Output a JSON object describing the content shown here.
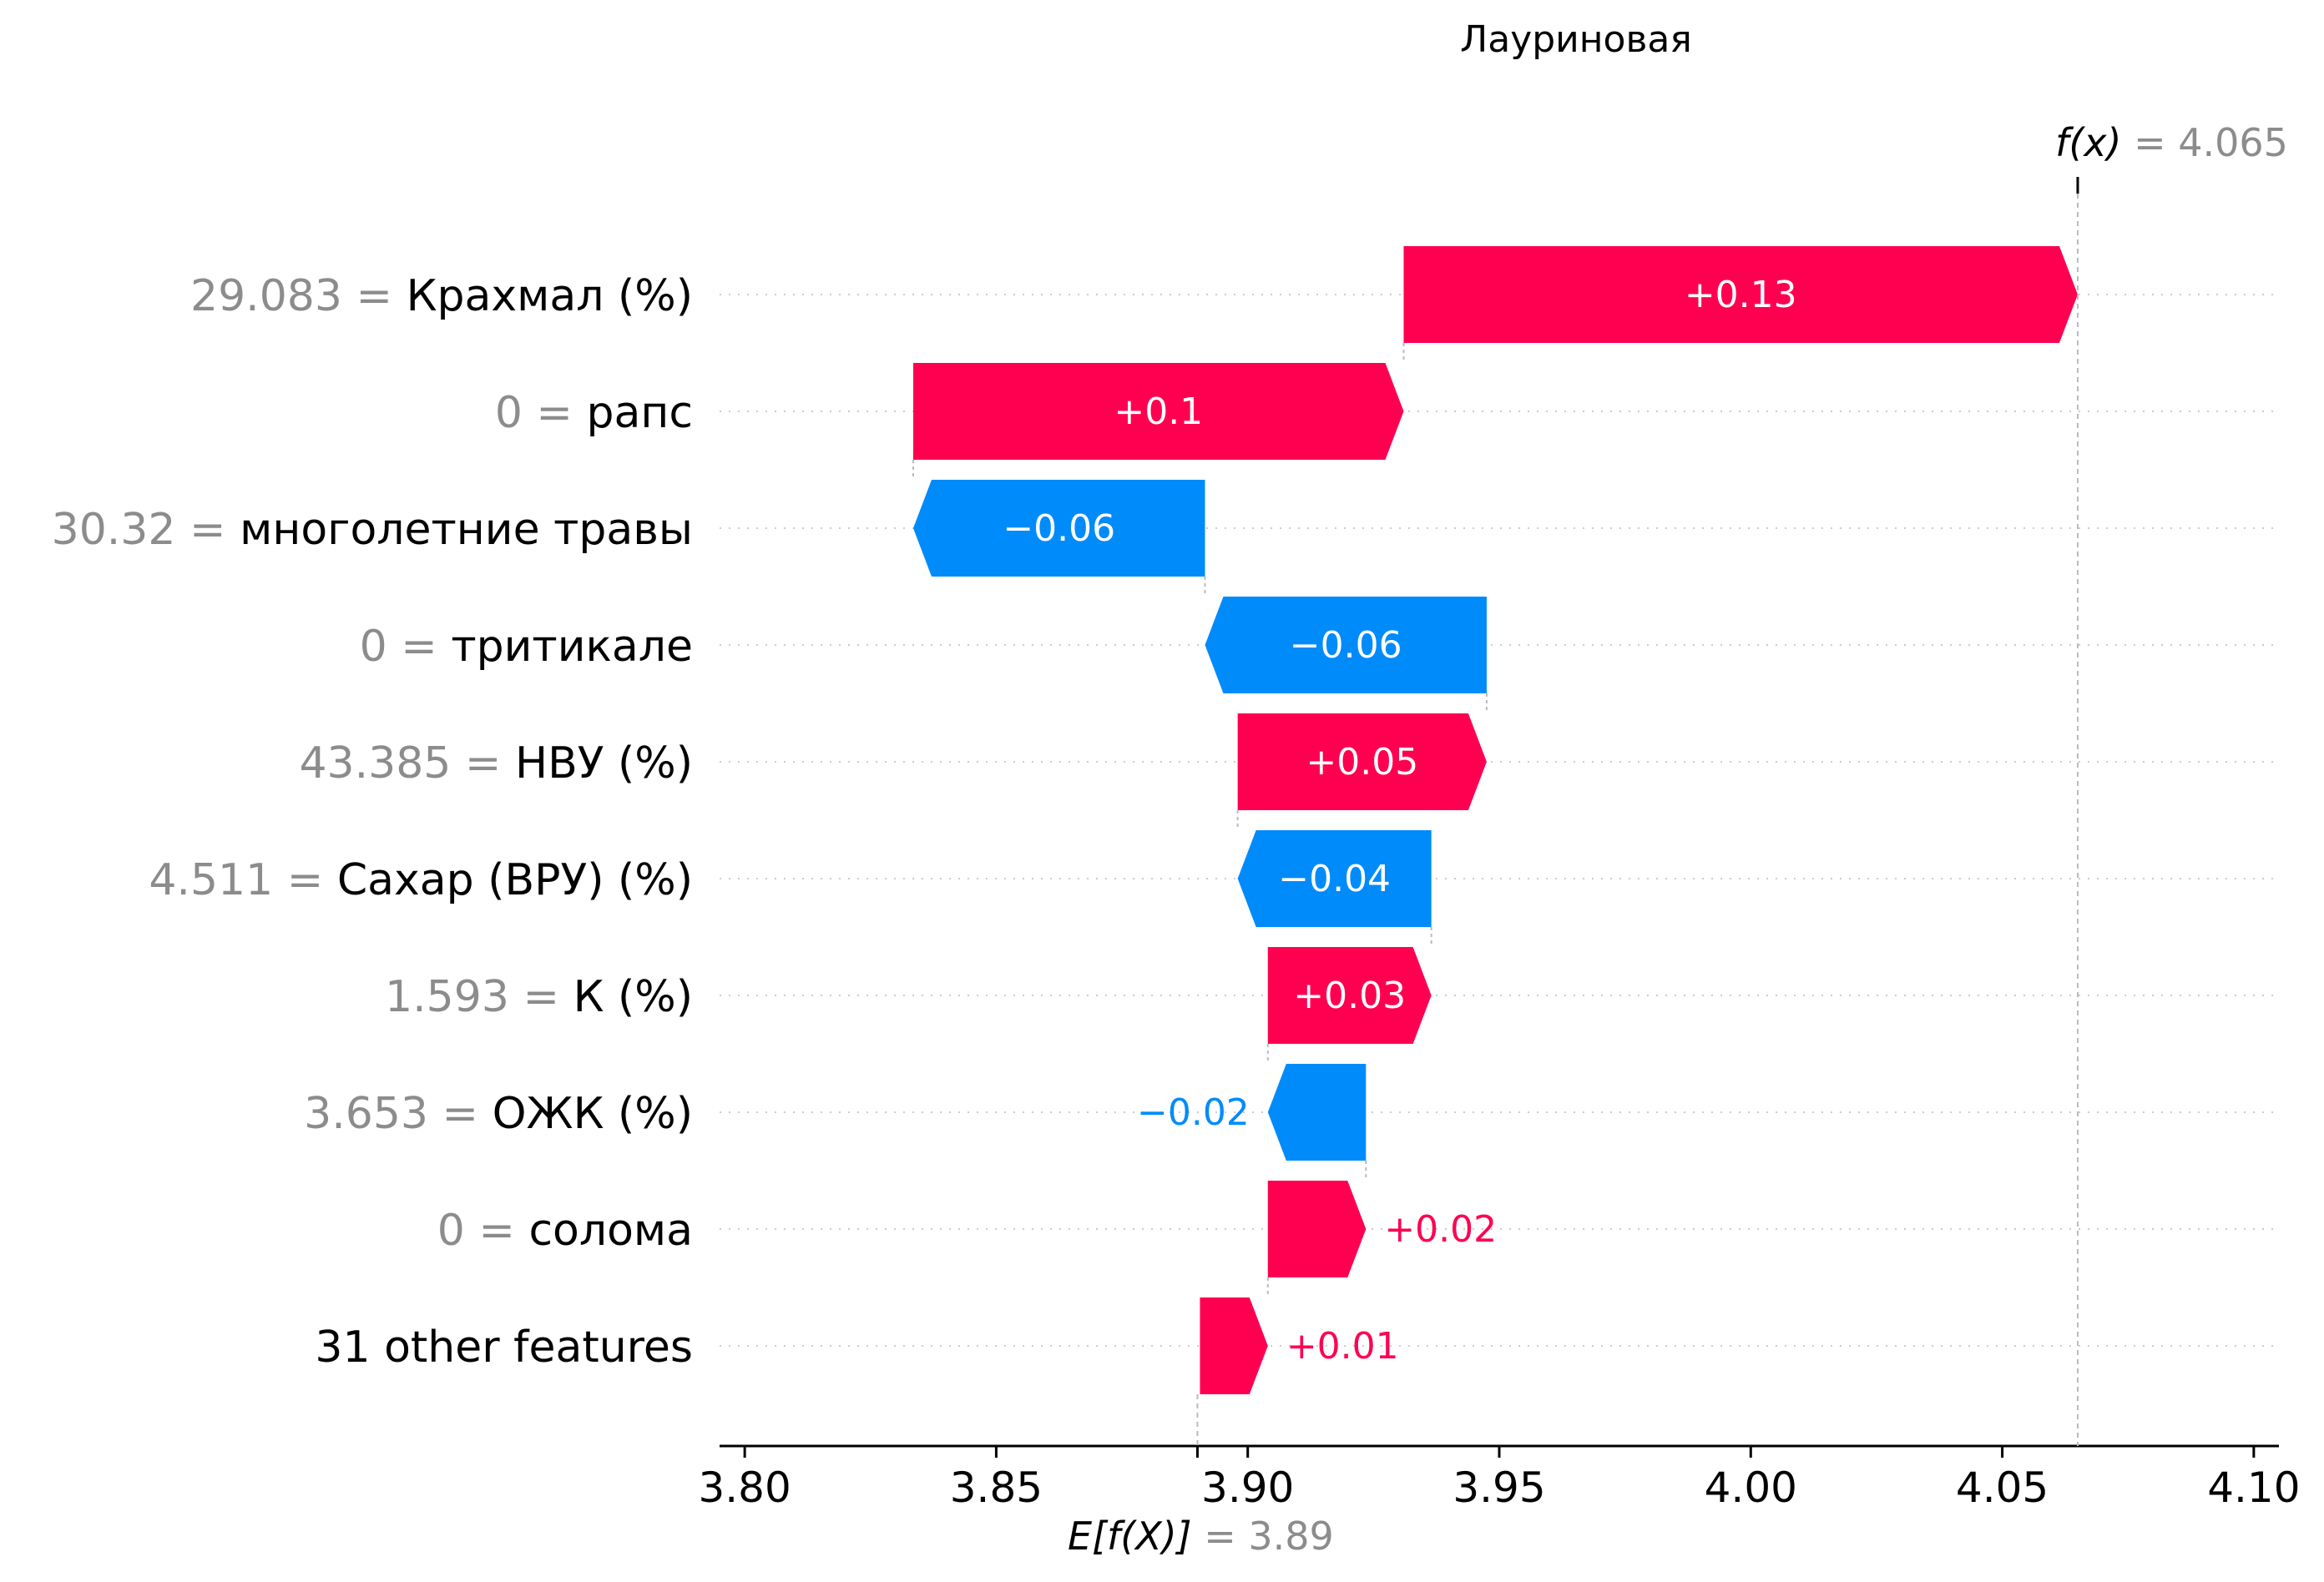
{
  "chart_data": {
    "type": "waterfall",
    "title": "Лауриновая",
    "base_value": 3.89,
    "base_value_text": "3.89",
    "final_value": 4.065,
    "final_value_text": "4.065",
    "fx_label": "f(x)",
    "ex_label": "E[f(X)]",
    "xlim": [
      3.795,
      4.105
    ],
    "xticks": [
      3.8,
      3.85,
      3.9,
      3.95,
      4.0,
      4.05,
      4.1
    ],
    "xtick_labels": [
      "3.80",
      "3.85",
      "3.90",
      "3.95",
      "4.00",
      "4.05",
      "4.10"
    ],
    "positive_color": "#ff0051",
    "negative_color": "#008bfb",
    "features": [
      {
        "value_text": "29.083",
        "name": "Крахмал (%)",
        "contribution": 0.134,
        "label": "+0.13"
      },
      {
        "value_text": "0",
        "name": "рапс",
        "contribution": 0.0975,
        "label": "+0.1"
      },
      {
        "value_text": "30.32",
        "name": "многолетние травы",
        "contribution": -0.058,
        "label": "−0.06"
      },
      {
        "value_text": "0",
        "name": "тритикале",
        "contribution": -0.056,
        "label": "−0.06"
      },
      {
        "value_text": "43.385",
        "name": "НВУ (%)",
        "contribution": 0.0495,
        "label": "+0.05"
      },
      {
        "value_text": "4.511",
        "name": "Сахар (ВРУ) (%)",
        "contribution": -0.0385,
        "label": "−0.04"
      },
      {
        "value_text": "1.593",
        "name": "К (%)",
        "contribution": 0.0325,
        "label": "+0.03"
      },
      {
        "value_text": "3.653",
        "name": "ОЖК (%)",
        "contribution": -0.0195,
        "label": "−0.02"
      },
      {
        "value_text": "0",
        "name": "солома",
        "contribution": 0.0195,
        "label": "+0.02"
      },
      {
        "value_text": "",
        "name": "31 other features",
        "contribution": 0.0135,
        "label": "+0.01"
      }
    ]
  }
}
